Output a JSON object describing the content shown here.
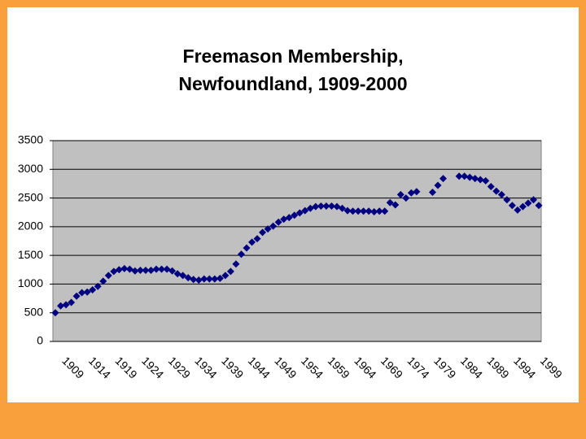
{
  "chart_data": {
    "type": "scatter",
    "title": "Freemason Membership, Newfoundland, 1909-2000",
    "categories": [
      "1909",
      null,
      null,
      null,
      null,
      "1914",
      null,
      null,
      null,
      null,
      "1919",
      null,
      null,
      null,
      null,
      "1924",
      null,
      null,
      null,
      null,
      "1929",
      null,
      null,
      null,
      null,
      "1934",
      null,
      null,
      null,
      null,
      "1939",
      null,
      null,
      null,
      null,
      "1944",
      null,
      null,
      null,
      null,
      "1949",
      null,
      null,
      null,
      null,
      "1954",
      null,
      null,
      null,
      null,
      "1959",
      null,
      null,
      null,
      null,
      "1964",
      null,
      null,
      null,
      null,
      "1969",
      null,
      null,
      null,
      null,
      "1974",
      null,
      null,
      null,
      null,
      "1979",
      null,
      null,
      null,
      null,
      "1984",
      null,
      null,
      null,
      null,
      "1989",
      null,
      null,
      null,
      null,
      "1994",
      null,
      null,
      null,
      null,
      "1999",
      null
    ],
    "series": [
      {
        "name": "Membership",
        "color": "#000080",
        "values": [
          500,
          620,
          640,
          680,
          790,
          850,
          860,
          900,
          960,
          1050,
          1150,
          1220,
          1250,
          1270,
          1260,
          1230,
          1240,
          1240,
          1240,
          1260,
          1260,
          1260,
          1230,
          1180,
          1150,
          1110,
          1080,
          1070,
          1090,
          1090,
          1090,
          1100,
          1150,
          1220,
          1350,
          1520,
          1630,
          1730,
          1790,
          1900,
          1960,
          2010,
          2080,
          2130,
          2160,
          2200,
          2240,
          2280,
          2320,
          2350,
          2360,
          2360,
          2360,
          2350,
          2320,
          2280,
          2270,
          2270,
          2270,
          2270,
          2260,
          2270,
          2270,
          2420,
          2380,
          2560,
          2500,
          2590,
          2610,
          null,
          null,
          2600,
          2720,
          2840,
          null,
          null,
          2880,
          2880,
          2860,
          2840,
          2820,
          2800,
          2700,
          2620,
          2560,
          2470,
          2370,
          2290,
          2350,
          2410,
          2470,
          2370
        ]
      }
    ],
    "ylim": [
      0,
      3500
    ],
    "yticks": [
      0,
      500,
      1000,
      1500,
      2000,
      2500,
      3000,
      3500
    ],
    "grid": true
  }
}
